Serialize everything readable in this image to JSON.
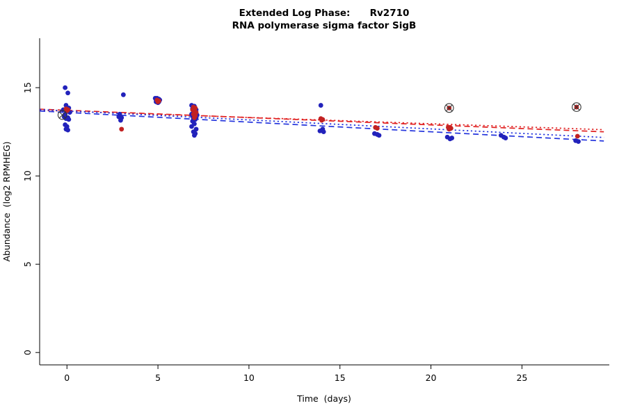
{
  "chart_data": {
    "type": "scatter",
    "title": "Extended Log Phase:      Rv2710",
    "subtitle": "RNA polymerase sigma factor SigB",
    "xlabel": "Time  (days)",
    "ylabel": "Abundance  (log2 RPMHEG)",
    "xlim": [
      -1.5,
      29.8
    ],
    "ylim": [
      -0.7,
      17.8
    ],
    "x_ticks": [
      0,
      5,
      10,
      15,
      20,
      25
    ],
    "y_ticks": [
      0,
      5,
      10,
      15
    ],
    "grid": false,
    "series": [
      {
        "name": "blue-points",
        "color": "#2222bb",
        "points": [
          [
            -0.1,
            15.0
          ],
          [
            0.05,
            14.7
          ],
          [
            -0.05,
            14.0
          ],
          [
            0.1,
            13.85
          ],
          [
            -0.2,
            13.75
          ],
          [
            0.0,
            13.7
          ],
          [
            0.15,
            13.6
          ],
          [
            -0.1,
            13.5
          ],
          [
            -0.15,
            13.35
          ],
          [
            0.05,
            13.3
          ],
          [
            -0.05,
            13.25
          ],
          [
            0.1,
            13.2
          ],
          [
            -0.1,
            12.9
          ],
          [
            0.0,
            12.8
          ],
          [
            -0.05,
            12.65
          ],
          [
            0.05,
            12.6
          ],
          [
            3.1,
            14.6
          ],
          [
            2.9,
            13.5
          ],
          [
            2.85,
            13.35
          ],
          [
            3.0,
            13.3
          ],
          [
            2.95,
            13.15
          ],
          [
            4.85,
            14.4
          ],
          [
            4.95,
            14.4
          ],
          [
            5.05,
            14.35
          ],
          [
            4.9,
            14.3
          ],
          [
            5.0,
            14.3
          ],
          [
            5.1,
            14.3
          ],
          [
            4.95,
            14.25
          ],
          [
            5.05,
            14.2
          ],
          [
            4.9,
            14.2
          ],
          [
            5.0,
            14.15
          ],
          [
            6.85,
            14.0
          ],
          [
            7.0,
            13.95
          ],
          [
            6.9,
            13.8
          ],
          [
            7.1,
            13.75
          ],
          [
            6.95,
            13.65
          ],
          [
            7.05,
            13.55
          ],
          [
            6.85,
            13.5
          ],
          [
            7.15,
            13.45
          ],
          [
            6.9,
            13.4
          ],
          [
            7.0,
            13.35
          ],
          [
            7.1,
            13.3
          ],
          [
            6.95,
            13.25
          ],
          [
            7.05,
            13.2
          ],
          [
            6.9,
            13.1
          ],
          [
            7.0,
            12.95
          ],
          [
            6.85,
            12.8
          ],
          [
            7.1,
            12.65
          ],
          [
            6.95,
            12.5
          ],
          [
            7.05,
            12.4
          ],
          [
            7.0,
            12.3
          ],
          [
            13.95,
            14.0
          ],
          [
            14.05,
            12.65
          ],
          [
            13.9,
            12.55
          ],
          [
            14.1,
            12.5
          ],
          [
            16.9,
            12.4
          ],
          [
            17.05,
            12.35
          ],
          [
            17.15,
            12.3
          ],
          [
            20.9,
            12.2
          ],
          [
            21.05,
            12.1
          ],
          [
            21.15,
            12.15
          ],
          [
            23.85,
            12.3
          ],
          [
            24.0,
            12.2
          ],
          [
            24.1,
            12.15
          ],
          [
            27.95,
            12.0
          ],
          [
            28.1,
            11.95
          ]
        ]
      },
      {
        "name": "red-points",
        "color": "#c22222",
        "points": [
          [
            -0.05,
            13.8
          ],
          [
            0.05,
            13.75
          ],
          [
            0.0,
            13.7
          ],
          [
            3.0,
            12.65
          ],
          [
            4.95,
            14.3
          ],
          [
            5.05,
            14.25
          ],
          [
            5.0,
            14.2
          ],
          [
            6.95,
            13.9
          ],
          [
            7.05,
            13.85
          ],
          [
            6.9,
            13.75
          ],
          [
            7.0,
            13.7
          ],
          [
            7.1,
            13.6
          ],
          [
            6.95,
            13.5
          ],
          [
            7.05,
            13.4
          ],
          [
            7.0,
            13.3
          ],
          [
            13.95,
            13.25
          ],
          [
            14.05,
            13.2
          ],
          [
            14.0,
            13.15
          ],
          [
            16.95,
            12.75
          ],
          [
            17.05,
            12.7
          ],
          [
            20.95,
            12.75
          ],
          [
            21.1,
            12.7
          ],
          [
            21.0,
            12.65
          ],
          [
            21.0,
            13.85
          ],
          [
            28.0,
            13.9
          ],
          [
            28.05,
            12.25
          ]
        ]
      }
    ],
    "marked_points": {
      "symbol": "circle-cross",
      "color": "#333333",
      "points": [
        [
          -0.25,
          13.45
        ],
        [
          21.0,
          13.85
        ],
        [
          28.0,
          13.9
        ]
      ]
    },
    "trend_lines": [
      {
        "name": "red-dashed-fit",
        "color": "#e02020",
        "style": "dashed",
        "x": [
          -1.5,
          29.5
        ],
        "y": [
          13.78,
          12.5
        ]
      },
      {
        "name": "red-dotted-fit",
        "color": "#e02020",
        "style": "dotted",
        "x": [
          -1.5,
          29.5
        ],
        "y": [
          13.72,
          12.62
        ]
      },
      {
        "name": "blue-dashed-fit",
        "color": "#2233dd",
        "style": "dashed",
        "x": [
          -1.5,
          29.5
        ],
        "y": [
          13.68,
          11.98
        ]
      },
      {
        "name": "blue-dotted-fit",
        "color": "#2233dd",
        "style": "dotted",
        "x": [
          -1.5,
          29.5
        ],
        "y": [
          13.76,
          12.18
        ]
      }
    ]
  }
}
